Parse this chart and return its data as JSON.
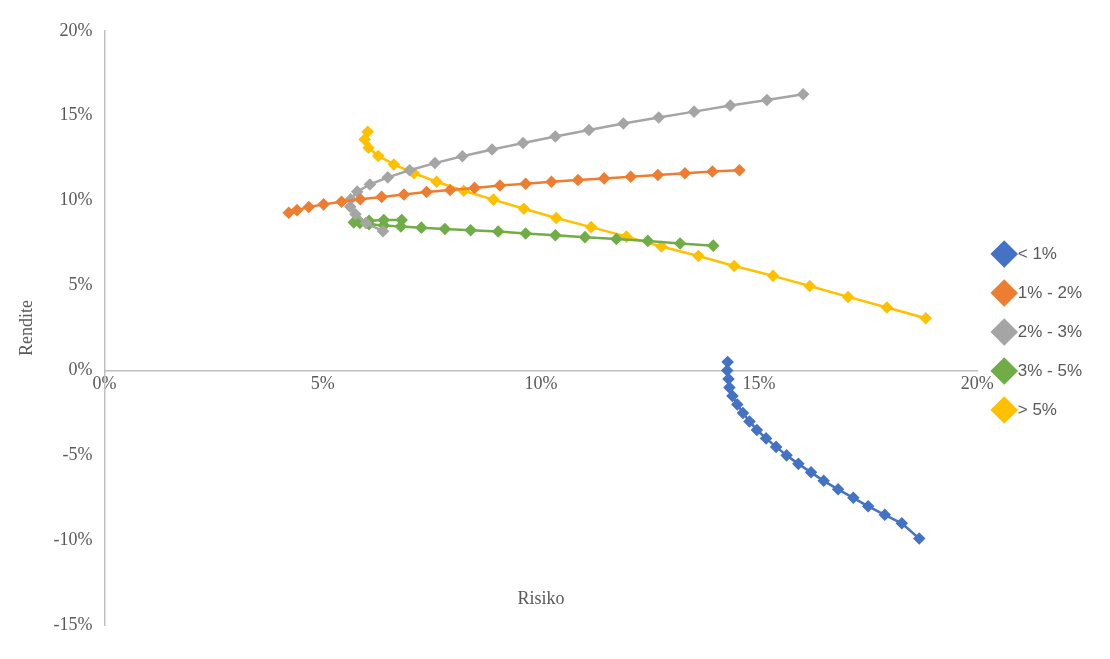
{
  "chart_data": {
    "type": "line",
    "xlabel": "Risiko",
    "ylabel": "Rendite",
    "xlim": [
      0,
      20
    ],
    "ylim": [
      -15,
      20
    ],
    "xticks": [
      {
        "value": 0,
        "label": "0%"
      },
      {
        "value": 5,
        "label": "5%"
      },
      {
        "value": 10,
        "label": "10%"
      },
      {
        "value": 15,
        "label": "15%"
      },
      {
        "value": 20,
        "label": "20%"
      }
    ],
    "yticks": [
      {
        "value": -15,
        "label": "-15%"
      },
      {
        "value": -10,
        "label": "-10%"
      },
      {
        "value": -5,
        "label": "-5%"
      },
      {
        "value": 0,
        "label": "0%"
      },
      {
        "value": 5,
        "label": "5%"
      },
      {
        "value": 10,
        "label": "10%"
      },
      {
        "value": 15,
        "label": "15%"
      },
      {
        "value": 20,
        "label": "20%"
      }
    ],
    "grid": false,
    "legend": "right",
    "marker": "diamond",
    "line_style": "solid",
    "series": [
      {
        "name": "< 1%",
        "color": "#4472c4",
        "x": [
          14.28,
          14.27,
          14.3,
          14.32,
          14.39,
          14.5,
          14.63,
          14.78,
          14.95,
          15.16,
          15.39,
          15.63,
          15.9,
          16.19,
          16.48,
          16.81,
          17.16,
          17.5,
          17.88,
          18.27,
          18.67
        ],
        "values": [
          0.5,
          0,
          -0.5,
          -1,
          -1.5,
          -2,
          -2.5,
          -3,
          -3.5,
          -4,
          -4.5,
          -5,
          -5.5,
          -6,
          -6.5,
          -7,
          -7.5,
          -8,
          -8.5,
          -9,
          -9.9
        ]
      },
      {
        "name": "1% - 2%",
        "color": "#ed7d31",
        "x": [
          4.22,
          4.41,
          4.68,
          5.02,
          5.43,
          5.86,
          6.35,
          6.86,
          7.38,
          7.92,
          8.48,
          9.06,
          9.65,
          10.24,
          10.85,
          11.45,
          12.06,
          12.68,
          13.3,
          13.93,
          14.55
        ],
        "values": [
          9.28,
          9.44,
          9.62,
          9.78,
          9.94,
          10.08,
          10.22,
          10.36,
          10.51,
          10.62,
          10.75,
          10.89,
          11,
          11.11,
          11.21,
          11.31,
          11.41,
          11.51,
          11.61,
          11.71,
          11.79
        ]
      },
      {
        "name": "2% - 3%",
        "color": "#a5a5a5",
        "x": [
          6.38,
          5.99,
          5.75,
          5.63,
          5.64,
          5.79,
          6.08,
          6.49,
          6.99,
          7.57,
          8.2,
          8.88,
          9.59,
          10.33,
          11.1,
          11.89,
          12.7,
          13.51,
          14.34,
          15.18,
          16.01
        ],
        "values": [
          8.2,
          8.68,
          9.2,
          9.64,
          10.08,
          10.53,
          10.95,
          11.37,
          11.79,
          12.21,
          12.61,
          13.01,
          13.39,
          13.78,
          14.16,
          14.54,
          14.9,
          15.24,
          15.6,
          15.92,
          16.26
        ]
      },
      {
        "name": "3% - 5%",
        "color": "#70ad47",
        "x": [
          6.81,
          6.4,
          6.06,
          5.85,
          5.71,
          5.85,
          6.06,
          6.4,
          6.79,
          7.26,
          7.8,
          8.39,
          9.02,
          9.65,
          10.33,
          11.01,
          11.73,
          12.45,
          13.19,
          13.95
        ],
        "values": [
          8.86,
          8.86,
          8.81,
          8.76,
          8.72,
          8.69,
          8.61,
          8.54,
          8.48,
          8.41,
          8.33,
          8.26,
          8.18,
          8.07,
          7.96,
          7.85,
          7.74,
          7.63,
          7.48,
          7.35
        ]
      },
      {
        "name": "> 5%",
        "color": "#ffc000",
        "x": [
          6.03,
          5.96,
          6.05,
          6.27,
          6.63,
          7.09,
          7.61,
          8.23,
          8.91,
          9.61,
          10.35,
          11.15,
          11.96,
          12.76,
          13.61,
          14.43,
          15.32,
          16.16,
          17.04,
          17.93,
          18.82
        ],
        "values": [
          14.06,
          13.6,
          13.11,
          12.63,
          12.13,
          11.61,
          11.11,
          10.58,
          10.06,
          9.52,
          8.98,
          8.44,
          7.88,
          7.3,
          6.74,
          6.15,
          5.57,
          4.97,
          4.33,
          3.71,
          3.07
        ]
      }
    ]
  }
}
